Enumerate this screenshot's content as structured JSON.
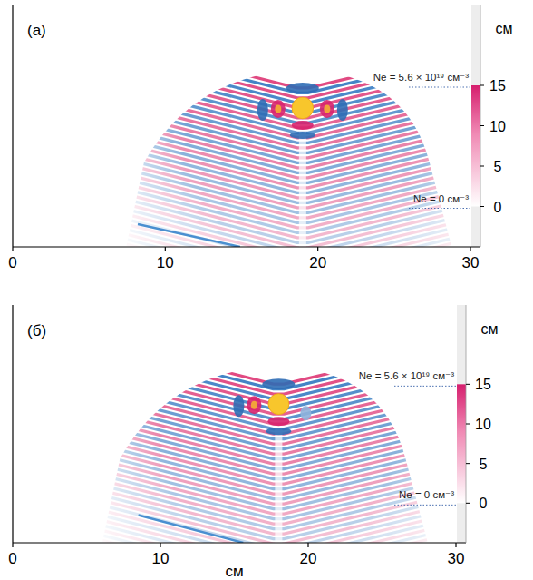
{
  "chart_data": [
    {
      "type": "field_map",
      "panel_label": "(а)",
      "y_label": "см",
      "xlim": [
        0,
        30
      ],
      "xticks": [
        0,
        10,
        20,
        30
      ],
      "ylim": [
        -5,
        25
      ],
      "yticks": [
        0,
        5,
        10,
        15
      ],
      "target": {
        "x": 19,
        "y": 12.2,
        "r": 0.7
      },
      "beam": {
        "x": [
          8.2,
          14.9
        ],
        "y": [
          -2.2,
          -5
        ]
      },
      "density_levels": [
        {
          "value": 15,
          "label": "Ne = 5.6 × 10¹⁹ см⁻³"
        },
        {
          "value": 0,
          "label": "Ne = 0 см⁻³"
        }
      ]
    },
    {
      "type": "field_map",
      "panel_label": "(б)",
      "y_label": "см",
      "x_label": "см",
      "xlim": [
        0,
        30
      ],
      "xticks": [
        0,
        10,
        20,
        30
      ],
      "ylim": [
        -5,
        25
      ],
      "yticks": [
        0,
        5,
        10,
        15
      ],
      "target": {
        "x": 18,
        "y": 12.5,
        "r": 0.7
      },
      "beam": {
        "x": [
          8.5,
          15.6
        ],
        "y": [
          -1.5,
          -5
        ]
      },
      "density_levels": [
        {
          "value": 15,
          "label": "Ne = 5.6 × 10¹⁹ см⁻³"
        },
        {
          "value": 0,
          "label": "Ne = 0 см⁻³"
        }
      ]
    }
  ]
}
